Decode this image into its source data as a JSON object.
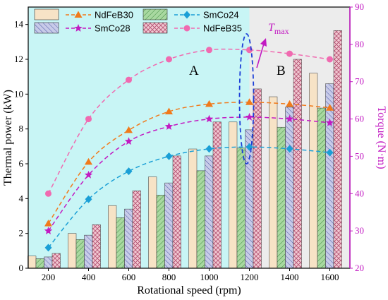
{
  "chart_data": {
    "type": "bar",
    "xlabel": "Rotational speed (rpm)",
    "ylabel": "Thermal power (kW)",
    "y2label": "Torque (N·m)",
    "x": [
      200,
      400,
      600,
      800,
      1000,
      1200,
      1400,
      1600
    ],
    "xticks": [
      "200",
      "400",
      "600",
      "800",
      "1000",
      "1200",
      "1400",
      "1600"
    ],
    "ylim": [
      0,
      15
    ],
    "yticks": [
      "0",
      "2",
      "4",
      "6",
      "8",
      "10",
      "12",
      "14"
    ],
    "y2lim": [
      20,
      90
    ],
    "y2ticks": [
      "20",
      "30",
      "40",
      "50",
      "60",
      "70",
      "80",
      "90"
    ],
    "bar_series": [
      {
        "name": "NdFeB30",
        "color": "#f7e3c6",
        "pattern": "none",
        "values": [
          0.7,
          2.0,
          3.6,
          5.25,
          6.85,
          8.4,
          9.85,
          11.2
        ]
      },
      {
        "name": "SmCo24",
        "color": "#a8d8a0",
        "pattern": "diag",
        "values": [
          0.55,
          1.65,
          2.9,
          4.2,
          5.6,
          6.9,
          8.1,
          9.2
        ]
      },
      {
        "name": "SmCo28",
        "color": "#c8cbe8",
        "pattern": "diag",
        "values": [
          0.65,
          1.9,
          3.4,
          4.9,
          6.45,
          7.95,
          9.25,
          10.6
        ]
      },
      {
        "name": "NdFeB35",
        "color": "#f2c8d2",
        "pattern": "cross",
        "values": [
          0.85,
          2.5,
          4.45,
          6.45,
          8.4,
          10.3,
          12.0,
          13.65
        ]
      }
    ],
    "line_series": [
      {
        "name": "NdFeB30",
        "color": "#f07a1c",
        "marker": "triangle",
        "values": [
          32,
          48.5,
          57,
          62,
          64,
          64.5,
          64,
          63
        ]
      },
      {
        "name": "SmCo28",
        "color": "#c21ac2",
        "marker": "star",
        "values": [
          30,
          45,
          54,
          58,
          60,
          60.5,
          60,
          59
        ]
      },
      {
        "name": "SmCo24",
        "color": "#1a9fd6",
        "marker": "diamond",
        "values": [
          25.5,
          38.5,
          46,
          50,
          52,
          52.5,
          52,
          51
        ]
      },
      {
        "name": "NdFeB35",
        "color": "#f06ab0",
        "marker": "circle",
        "values": [
          40,
          60,
          70.5,
          76,
          78.5,
          78.5,
          77.5,
          76
        ]
      }
    ],
    "legend": {
      "placement": "top-left",
      "items": [
        "NdFeB30",
        "NdFeB30",
        "SmCo24",
        "SmCo24",
        "SmCo28",
        "SmCo28",
        "NdFeB35",
        "NdFeB35"
      ]
    },
    "regions": [
      {
        "label": "A",
        "from": 100,
        "to": 1200,
        "color": "#c8f5f5"
      },
      {
        "label": "B",
        "from": 1200,
        "to": 1700,
        "color": "#ececec"
      }
    ],
    "annotation": {
      "text": "T",
      "subscript": "max",
      "x": 1200
    }
  }
}
